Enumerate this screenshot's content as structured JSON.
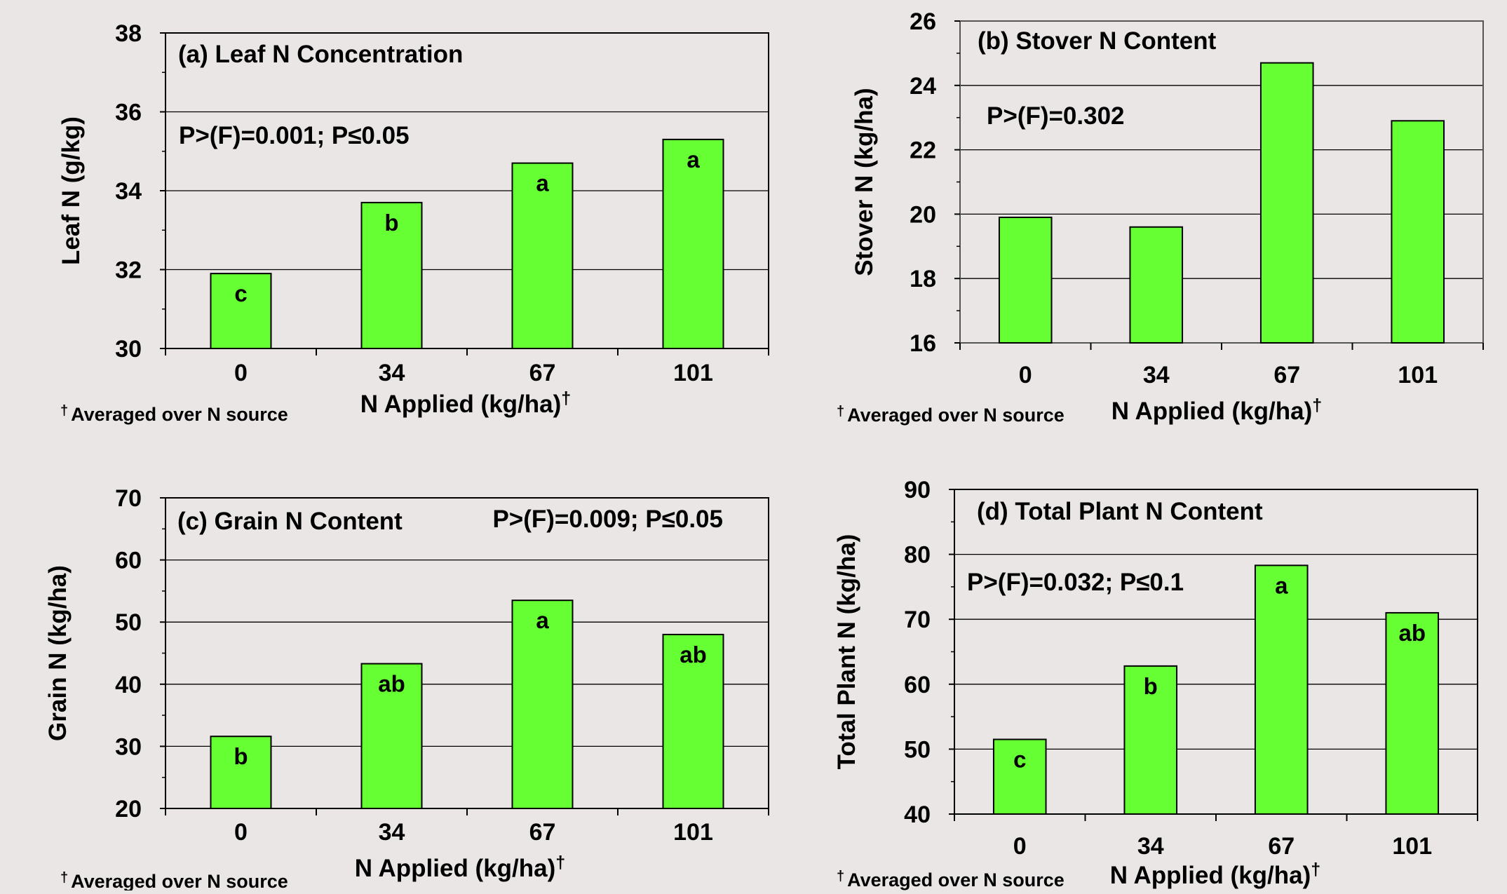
{
  "chart_data": [
    {
      "type": "bar",
      "title": "(a) Leaf N Concentration",
      "stat_text": "P>(F)=0.001; P≤0.05",
      "categories": [
        "0",
        "34",
        "67",
        "101"
      ],
      "values": [
        31.9,
        33.7,
        34.7,
        35.3
      ],
      "bar_labels": [
        "c",
        "b",
        "a",
        "a"
      ],
      "xlabel": "N Applied (kg/ha)",
      "xlabel_mark": "†",
      "ylabel": "Leaf N (g/kg)",
      "ylim": [
        30,
        38
      ],
      "yticks": [
        30,
        32,
        34,
        36,
        38
      ],
      "footnote_mark": "†",
      "footnote": "Averaged over N source",
      "grid": true,
      "bar_color": "#66ff33"
    },
    {
      "type": "bar",
      "title": "(b) Stover N Content",
      "stat_text": "P>(F)=0.302",
      "categories": [
        "0",
        "34",
        "67",
        "101"
      ],
      "values": [
        19.9,
        19.6,
        24.7,
        22.9
      ],
      "bar_labels": [
        "",
        "",
        "",
        ""
      ],
      "xlabel": "N Applied (kg/ha)",
      "xlabel_mark": "†",
      "ylabel": "Stover N (kg/ha)",
      "ylim": [
        16,
        26
      ],
      "yticks": [
        16,
        18,
        20,
        22,
        24,
        26
      ],
      "footnote_mark": "†",
      "footnote": "Averaged over N source",
      "grid": true,
      "bar_color": "#66ff33"
    },
    {
      "type": "bar",
      "title": "(c) Grain N Content",
      "stat_text": "P>(F)=0.009; P≤0.05",
      "categories": [
        "0",
        "34",
        "67",
        "101"
      ],
      "values": [
        31.6,
        43.3,
        53.5,
        48.0
      ],
      "bar_labels": [
        "b",
        "ab",
        "a",
        "ab"
      ],
      "xlabel": "N Applied (kg/ha)",
      "xlabel_mark": "†",
      "ylabel": "Grain N (kg/ha)",
      "ylim": [
        20,
        70
      ],
      "yticks": [
        20,
        30,
        40,
        50,
        60,
        70
      ],
      "footnote_mark": "†",
      "footnote": "Averaged over N source",
      "grid": true,
      "bar_color": "#66ff33"
    },
    {
      "type": "bar",
      "title": "(d) Total Plant N Content",
      "stat_text": "P>(F)=0.032; P≤0.1",
      "categories": [
        "0",
        "34",
        "67",
        "101"
      ],
      "values": [
        51.5,
        62.8,
        78.3,
        71.0
      ],
      "bar_labels": [
        "c",
        "b",
        "a",
        "ab"
      ],
      "xlabel": "N Applied (kg/ha)",
      "xlabel_mark": "†",
      "ylabel": "Total Plant N (kg/ha)",
      "ylim": [
        40,
        90
      ],
      "yticks": [
        40,
        50,
        60,
        70,
        80,
        90
      ],
      "footnote_mark": "†",
      "footnote": "Averaged over N source",
      "grid": true,
      "bar_color": "#66ff33"
    }
  ]
}
